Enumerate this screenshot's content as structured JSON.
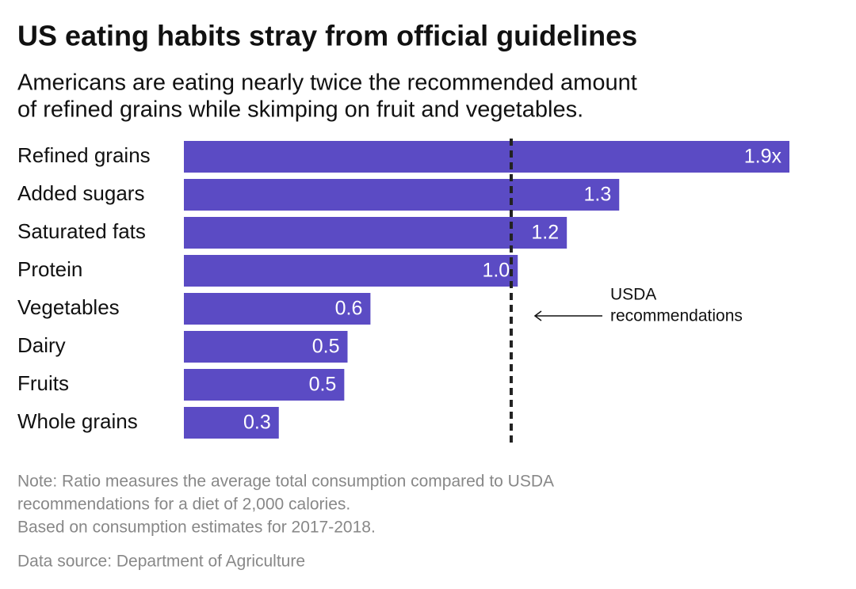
{
  "chart_data": {
    "type": "barh",
    "title": "US eating habits stray from official guidelines",
    "subtitle": [
      "Americans are eating nearly twice the recommended amount",
      "of refined grains while skimping on fruit and vegetables."
    ],
    "categories": [
      "Refined grains",
      "Added sugars",
      "Saturated fats",
      "Protein",
      "Vegetables",
      "Dairy",
      "Fruits",
      "Whole grains"
    ],
    "values": [
      1.85,
      1.33,
      1.17,
      1.02,
      0.57,
      0.5,
      0.49,
      0.29
    ],
    "value_labels": [
      "1.9x",
      "1.3",
      "1.2",
      "1.0",
      "0.6",
      "0.5",
      "0.5",
      "0.3"
    ],
    "color": "#5b4bc4",
    "xlim": [
      0,
      1.85
    ],
    "reference_line": {
      "value": 1,
      "label": [
        "USDA",
        "recommendations"
      ]
    },
    "notes": [
      "Note: Ratio measures the average total consumption compared to USDA",
      "recommendations for a diet of 2,000 calories.",
      "Based on consumption estimates for 2017-2018."
    ],
    "source": "Data source: Department of Agriculture"
  }
}
